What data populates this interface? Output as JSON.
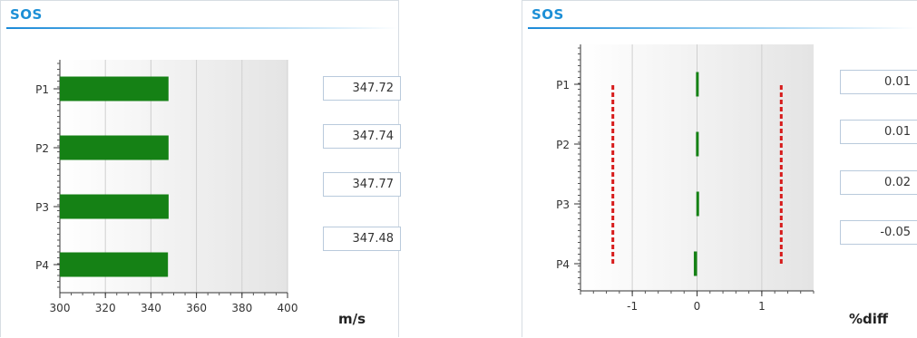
{
  "chart_data": [
    {
      "type": "bar",
      "orientation": "horizontal",
      "title": "SOS",
      "categories": [
        "P1",
        "P2",
        "P3",
        "P4"
      ],
      "values": [
        347.72,
        347.74,
        347.77,
        347.48
      ],
      "value_labels": [
        "347.72",
        "347.74",
        "347.77",
        "347.48"
      ],
      "xlim": [
        300,
        400
      ],
      "xticks": [
        300,
        320,
        340,
        360,
        380,
        400
      ],
      "xlabel": "m/s",
      "grid": true,
      "color": "#158115"
    },
    {
      "type": "bar",
      "orientation": "horizontal",
      "title": "SOS",
      "categories": [
        "P1",
        "P2",
        "P3",
        "P4"
      ],
      "values": [
        0.01,
        0.01,
        0.02,
        -0.05
      ],
      "value_labels": [
        "0.01",
        "0.01",
        "0.02",
        "-0.05"
      ],
      "xlim": [
        -1.8,
        1.8
      ],
      "xticks": [
        -1,
        0,
        1
      ],
      "xlabel": "%diff",
      "limit_lines": [
        -1.3,
        1.3
      ],
      "limit_color": "#d71b1b",
      "grid": true,
      "color": "#158115"
    }
  ]
}
